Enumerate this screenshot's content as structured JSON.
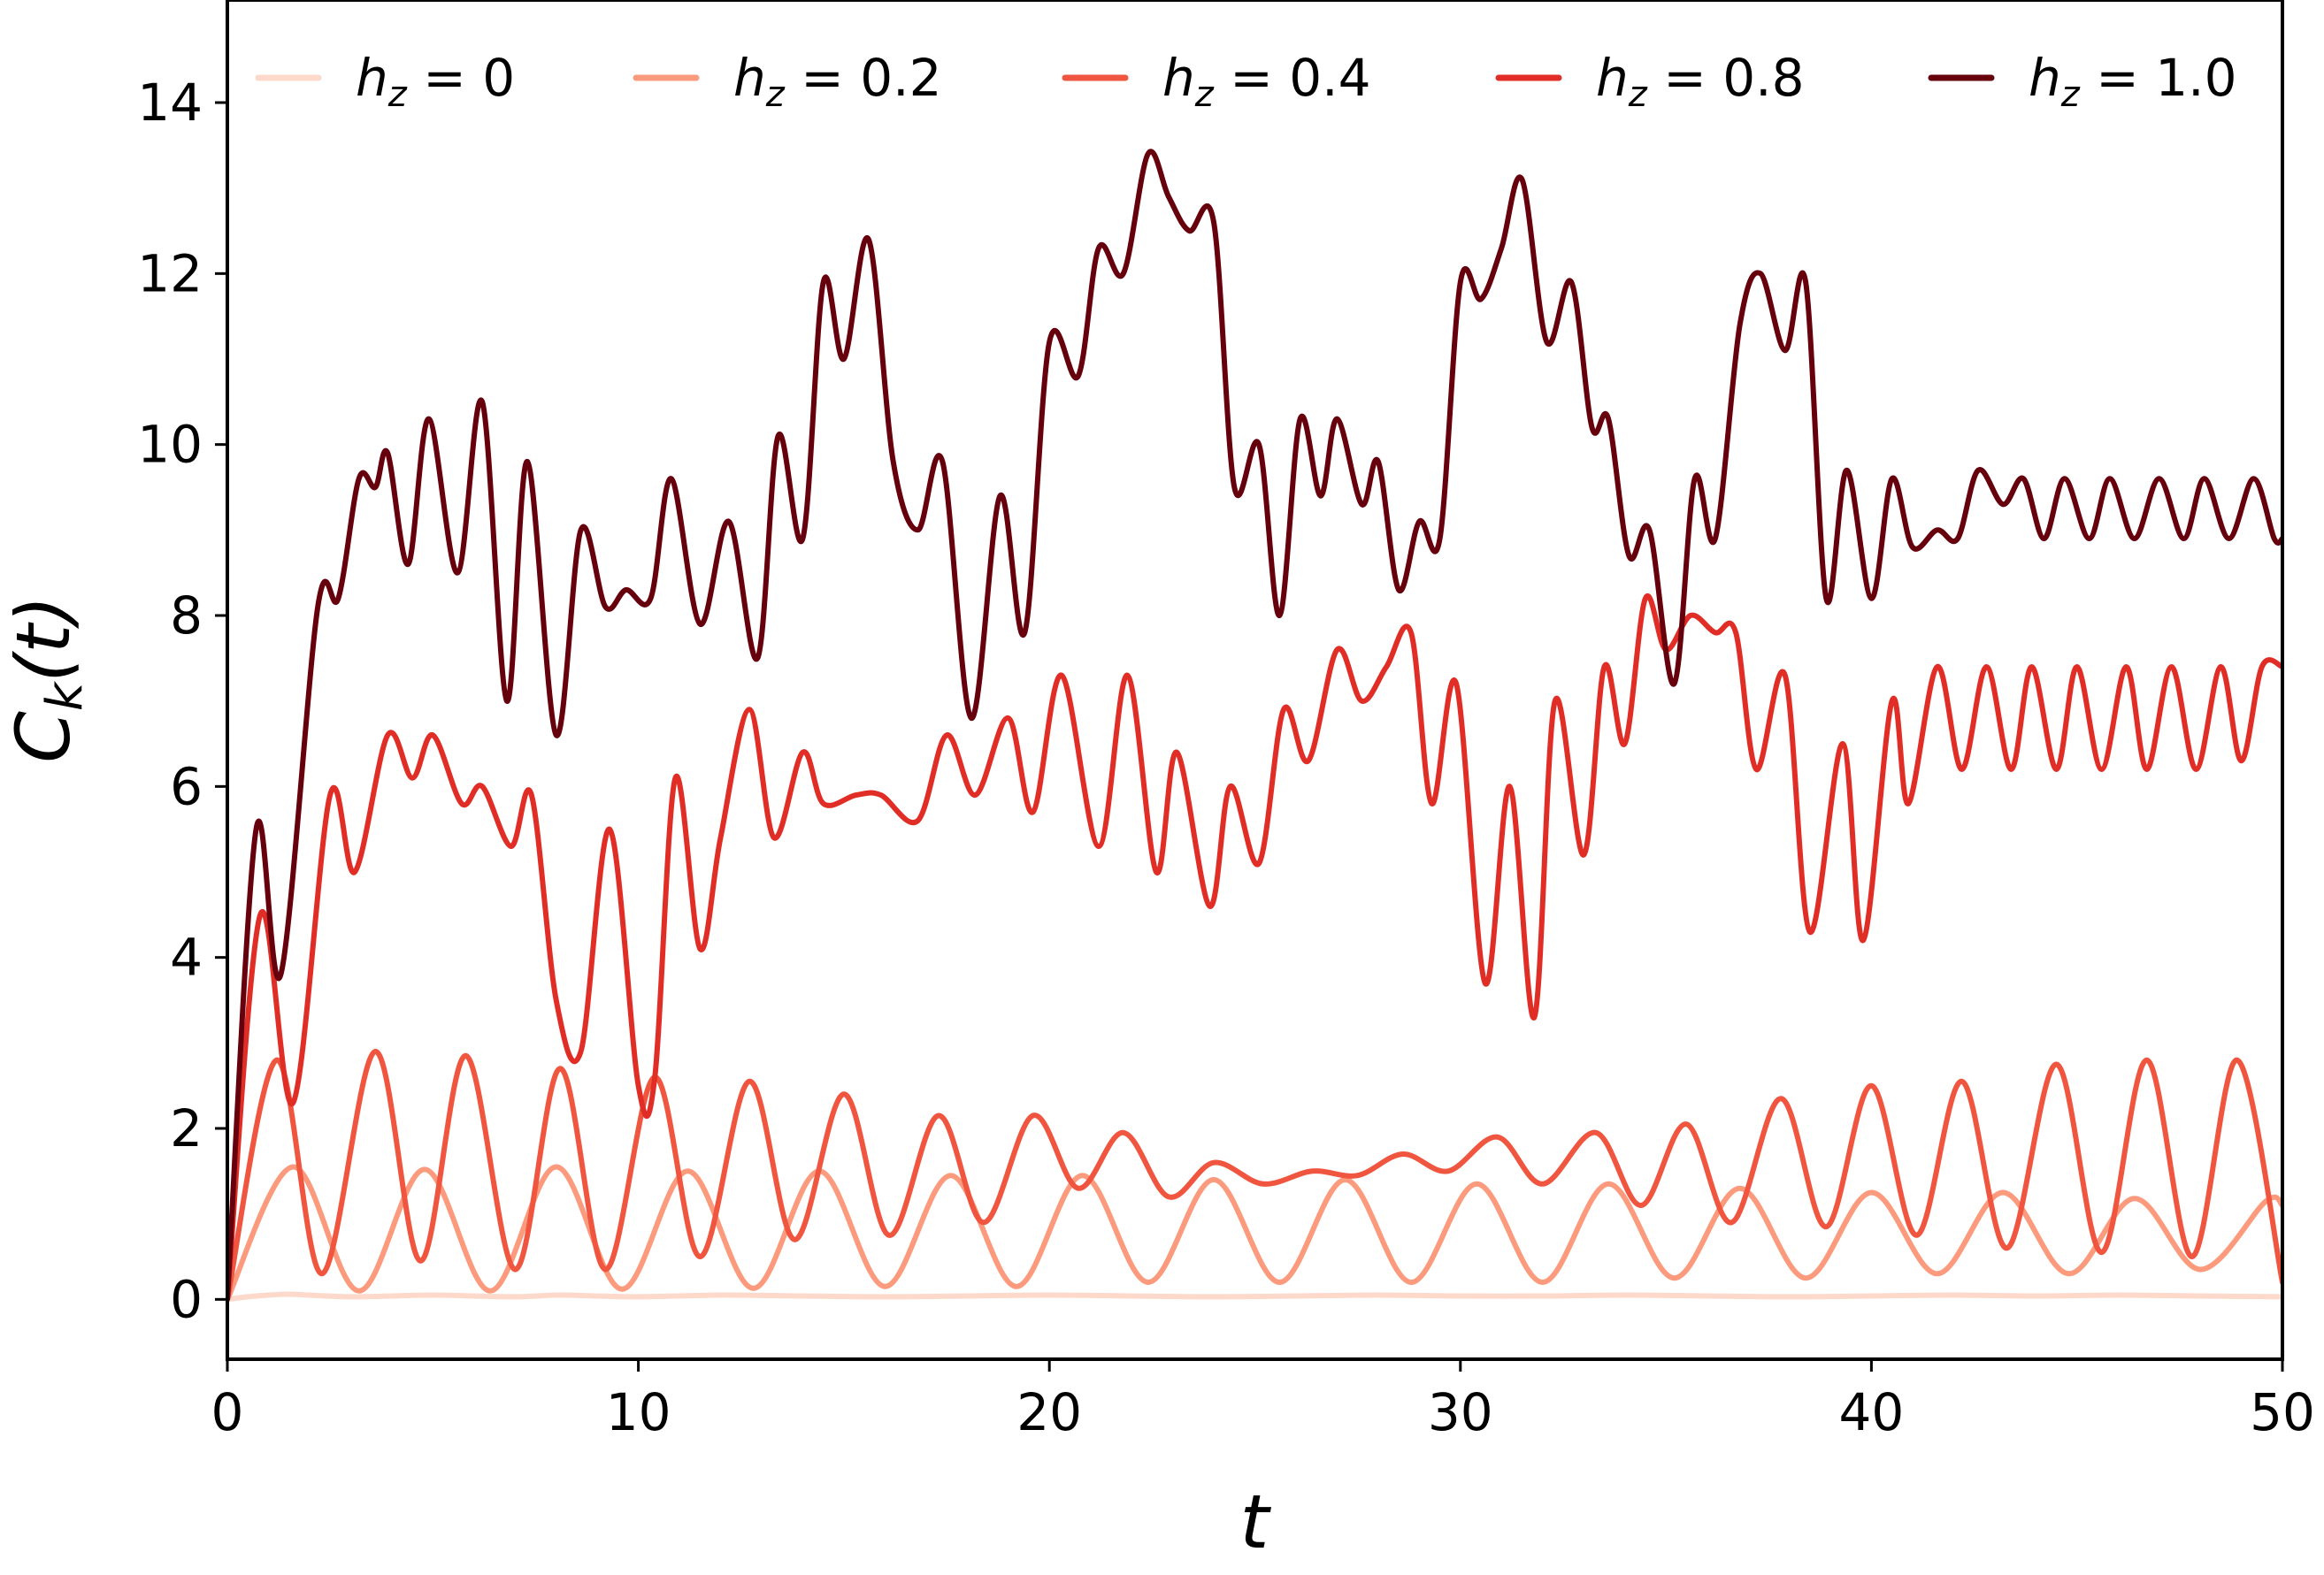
{
  "chart_data": {
    "type": "line",
    "xlabel": "t",
    "ylabel": "C_k(t)",
    "xlim": [
      0,
      50
    ],
    "ylim": [
      -0.7,
      15.2
    ],
    "xticks": [
      0,
      10,
      20,
      30,
      40,
      50
    ],
    "yticks": [
      0,
      2,
      4,
      6,
      8,
      10,
      12,
      14
    ],
    "grid": false,
    "legend_position": "top",
    "series": [
      {
        "name": "h_z = 0",
        "color": "#fdd9cb",
        "x": [
          0,
          0.5,
          1,
          1.5,
          2,
          3,
          4,
          5,
          6,
          7,
          8,
          9,
          10,
          12,
          14,
          16,
          18,
          20,
          22,
          24,
          26,
          28,
          30,
          32,
          34,
          36,
          38,
          40,
          42,
          44,
          46,
          48,
          50
        ],
        "y": [
          0,
          0.03,
          0.05,
          0.06,
          0.05,
          0.03,
          0.04,
          0.05,
          0.04,
          0.03,
          0.05,
          0.04,
          0.03,
          0.05,
          0.04,
          0.03,
          0.04,
          0.05,
          0.04,
          0.03,
          0.04,
          0.05,
          0.04,
          0.04,
          0.05,
          0.04,
          0.03,
          0.04,
          0.05,
          0.04,
          0.05,
          0.04,
          0.03
        ]
      },
      {
        "name": "h_z = 0.2",
        "color": "#fb9a7c",
        "x": [
          0,
          1.6,
          3.2,
          4.8,
          6.4,
          8.0,
          9.6,
          11.2,
          12.8,
          14.4,
          16.0,
          17.6,
          19.2,
          20.8,
          22.4,
          24.0,
          25.6,
          27.2,
          28.8,
          30.4,
          32.0,
          33.6,
          35.2,
          36.8,
          38.4,
          40.0,
          41.6,
          43.2,
          44.8,
          46.4,
          48.0,
          49.6,
          50
        ],
        "y": [
          0,
          1.55,
          0.1,
          1.52,
          0.1,
          1.55,
          0.12,
          1.5,
          0.13,
          1.5,
          0.15,
          1.45,
          0.15,
          1.45,
          0.2,
          1.4,
          0.2,
          1.4,
          0.2,
          1.35,
          0.2,
          1.35,
          0.25,
          1.3,
          0.25,
          1.25,
          0.3,
          1.25,
          0.3,
          1.18,
          0.35,
          1.15,
          1.1
        ]
      },
      {
        "name": "h_z = 0.4",
        "color": "#f0563f",
        "x": [
          0,
          1.2,
          2.3,
          3.6,
          4.7,
          5.8,
          7.0,
          8.1,
          9.2,
          10.4,
          11.5,
          12.7,
          13.8,
          15.0,
          16.1,
          17.3,
          18.4,
          19.6,
          20.7,
          21.8,
          22.9,
          24.0,
          25.2,
          26.4,
          27.5,
          28.6,
          29.7,
          30.9,
          32.0,
          33.3,
          34.4,
          35.5,
          36.6,
          37.8,
          38.9,
          40.0,
          41.1,
          42.2,
          43.3,
          44.5,
          45.6,
          46.7,
          47.8,
          48.9,
          50
        ],
        "y": [
          0,
          2.8,
          0.3,
          2.9,
          0.45,
          2.85,
          0.35,
          2.7,
          0.35,
          2.6,
          0.5,
          2.55,
          0.7,
          2.4,
          0.75,
          2.15,
          0.9,
          2.15,
          1.3,
          1.95,
          1.2,
          1.6,
          1.35,
          1.5,
          1.45,
          1.7,
          1.5,
          1.9,
          1.35,
          1.95,
          1.1,
          2.05,
          0.9,
          2.35,
          0.85,
          2.5,
          0.75,
          2.55,
          0.6,
          2.75,
          0.55,
          2.8,
          0.5,
          2.8,
          0.2
        ]
      },
      {
        "name": "h_z = 0.8",
        "color": "#e02e27",
        "x": [
          0,
          0.8,
          1.6,
          2.5,
          3.1,
          3.9,
          4.5,
          5.0,
          5.7,
          6.2,
          6.9,
          7.4,
          8.0,
          8.6,
          9.3,
          10.0,
          10.4,
          10.9,
          11.5,
          12.0,
          12.7,
          13.3,
          14.0,
          14.5,
          15.3,
          15.9,
          16.8,
          17.5,
          18.2,
          19.0,
          19.6,
          20.3,
          21.2,
          21.9,
          22.6,
          23.1,
          23.9,
          24.4,
          25.1,
          25.7,
          26.3,
          27.0,
          27.6,
          28.2,
          28.8,
          29.3,
          29.9,
          30.6,
          31.2,
          31.8,
          32.3,
          33.0,
          33.5,
          34.0,
          34.5,
          35.0,
          35.6,
          36.2,
          36.7,
          37.2,
          37.9,
          38.5,
          39.3,
          39.8,
          40.5,
          40.9,
          41.6,
          42.2,
          42.8,
          43.4,
          43.9,
          44.5,
          45.0,
          45.6,
          46.2,
          46.7,
          47.3,
          47.9,
          48.5,
          49.0,
          49.5,
          50
        ],
        "y": [
          0,
          4.5,
          2.3,
          5.9,
          5.0,
          6.6,
          6.1,
          6.6,
          5.8,
          6.0,
          5.3,
          5.9,
          3.5,
          2.9,
          5.5,
          2.5,
          2.6,
          6.1,
          4.1,
          5.4,
          6.9,
          5.4,
          6.4,
          5.8,
          5.9,
          5.9,
          5.6,
          6.6,
          5.9,
          6.8,
          5.7,
          7.3,
          5.3,
          7.3,
          5.0,
          6.4,
          4.6,
          6.0,
          5.1,
          6.9,
          6.3,
          7.6,
          7.0,
          7.4,
          7.8,
          5.8,
          7.2,
          3.7,
          6.0,
          3.3,
          7.0,
          5.2,
          7.4,
          6.5,
          8.2,
          7.6,
          8.0,
          7.8,
          7.8,
          6.2,
          7.3,
          4.3,
          6.5,
          4.2,
          7.0,
          5.8,
          7.4,
          6.2,
          7.4,
          6.2,
          7.4,
          6.2,
          7.4,
          6.2,
          7.4,
          6.2,
          7.4,
          6.2,
          7.4,
          6.3,
          7.4,
          7.4
        ]
      },
      {
        "name": "h_z = 1.0",
        "color": "#67000d",
        "x": [
          0,
          0.7,
          1.3,
          2.2,
          2.7,
          3.2,
          3.6,
          3.9,
          4.4,
          4.9,
          5.6,
          6.2,
          6.8,
          7.3,
          8.0,
          8.6,
          9.2,
          9.7,
          10.3,
          10.8,
          11.5,
          12.2,
          12.9,
          13.4,
          14.0,
          14.5,
          15.0,
          15.6,
          16.2,
          16.8,
          17.4,
          18.1,
          18.8,
          19.4,
          20.0,
          20.7,
          21.2,
          21.8,
          22.4,
          22.9,
          23.4,
          24.0,
          24.5,
          25.1,
          25.6,
          26.1,
          26.6,
          27.0,
          27.6,
          28.0,
          28.5,
          29.0,
          29.5,
          30.0,
          30.5,
          31.0,
          31.5,
          32.1,
          32.7,
          33.2,
          33.6,
          34.1,
          34.6,
          35.2,
          35.7,
          36.2,
          36.8,
          37.3,
          37.9,
          38.4,
          38.9,
          39.4,
          40.0,
          40.5,
          41.0,
          41.6,
          42.1,
          42.6,
          43.2,
          43.7,
          44.2,
          44.7,
          45.3,
          45.8,
          46.4,
          47.0,
          47.6,
          48.1,
          48.7,
          49.3,
          49.8,
          50
        ],
        "y": [
          0,
          5.5,
          3.8,
          8.1,
          8.2,
          9.6,
          9.5,
          9.9,
          8.6,
          10.3,
          8.5,
          10.5,
          7.0,
          9.8,
          6.6,
          9.0,
          8.1,
          8.3,
          8.2,
          9.6,
          7.9,
          9.1,
          7.5,
          10.1,
          8.9,
          11.9,
          11.0,
          12.4,
          9.8,
          9.0,
          9.8,
          6.8,
          9.4,
          7.8,
          11.2,
          10.8,
          12.3,
          12.0,
          13.4,
          12.9,
          12.5,
          12.6,
          9.5,
          10.0,
          8.0,
          10.3,
          9.4,
          10.3,
          9.3,
          9.8,
          8.3,
          9.1,
          8.9,
          11.9,
          11.7,
          12.3,
          13.1,
          11.2,
          11.9,
          10.2,
          10.3,
          8.7,
          9.0,
          7.2,
          9.6,
          8.9,
          11.4,
          12.0,
          11.1,
          11.9,
          8.2,
          9.7,
          8.2,
          9.6,
          8.8,
          9.0,
          8.9,
          9.7,
          9.3,
          9.6,
          8.9,
          9.6,
          8.9,
          9.6,
          8.9,
          9.6,
          8.9,
          9.6,
          8.9,
          9.6,
          8.9,
          8.9
        ]
      }
    ]
  }
}
